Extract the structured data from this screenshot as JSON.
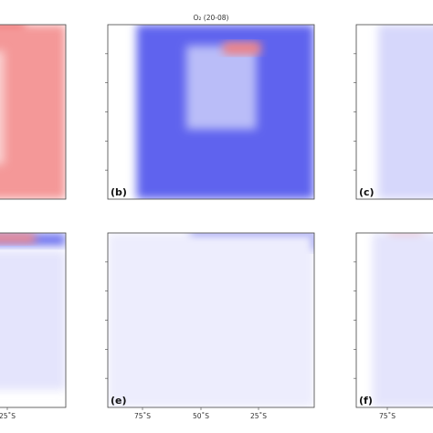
{
  "chart_data": {
    "type": "heatmap",
    "colormap": {
      "negative": "#1a22e6",
      "zero": "#ffffff",
      "positive": "#e61a1a"
    },
    "panels": [
      {
        "id": "a",
        "label": "",
        "title": "",
        "x_ticks": [],
        "features": [
          {
            "x": [
              0.0,
              0.6
            ],
            "y": [
              0.0,
              0.06
            ],
            "value": 0.85
          },
          {
            "x": [
              0.0,
              1.0
            ],
            "y": [
              0.0,
              1.0
            ],
            "value": 0.45
          },
          {
            "x": [
              0.0,
              0.4
            ],
            "y": [
              0.15,
              0.8
            ],
            "value": 0.2
          }
        ]
      },
      {
        "id": "b",
        "label": "(b)",
        "title": "O₂ (20-08)",
        "x_ticks": [],
        "features": [
          {
            "x": [
              0.14,
              1.0
            ],
            "y": [
              0.0,
              1.0
            ],
            "value": -0.7
          },
          {
            "x": [
              0.38,
              0.72
            ],
            "y": [
              0.12,
              0.6
            ],
            "value": -0.3
          },
          {
            "x": [
              0.56,
              0.74
            ],
            "y": [
              0.1,
              0.17
            ],
            "value": 0.55
          }
        ]
      },
      {
        "id": "c",
        "label": "(c)",
        "title": "",
        "x_ticks": [],
        "features": [
          {
            "x": [
              0.2,
              1.0
            ],
            "y": [
              0.0,
              1.0
            ],
            "value": -0.18
          }
        ]
      },
      {
        "id": "d",
        "label": "",
        "title": "",
        "x_ticks": [
          "25˚S"
        ],
        "features": [
          {
            "x": [
              0.0,
              1.0
            ],
            "y": [
              0.0,
              0.08
            ],
            "value": -0.6
          },
          {
            "x": [
              0.0,
              0.7
            ],
            "y": [
              0.0,
              0.06
            ],
            "value": 0.5
          },
          {
            "x": [
              0.0,
              1.0
            ],
            "y": [
              0.1,
              0.9
            ],
            "value": -0.12
          }
        ]
      },
      {
        "id": "e",
        "label": "(e)",
        "title": "",
        "x_ticks": [
          "75˚S",
          "50˚S",
          "25˚S"
        ],
        "features": [
          {
            "x": [
              0.4,
              1.0
            ],
            "y": [
              0.0,
              0.1
            ],
            "value": -0.85
          },
          {
            "x": [
              0.0,
              1.0
            ],
            "y": [
              0.0,
              1.0
            ],
            "value": -0.08
          }
        ]
      },
      {
        "id": "f",
        "label": "(f)",
        "title": "",
        "x_ticks": [
          "75˚S"
        ],
        "features": [
          {
            "x": [
              0.3,
              0.6
            ],
            "y": [
              0.0,
              0.15
            ],
            "value": 0.35
          },
          {
            "x": [
              0.15,
              1.0
            ],
            "y": [
              0.0,
              1.0
            ],
            "value": -0.12
          }
        ]
      }
    ]
  }
}
